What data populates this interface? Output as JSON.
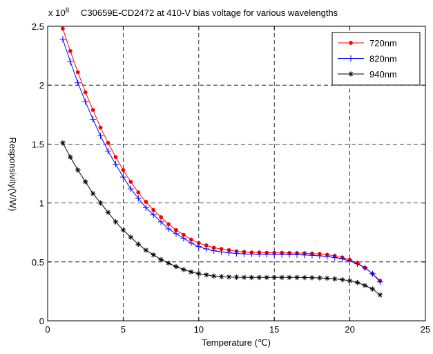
{
  "chart_data": {
    "type": "line",
    "title": "C30659E-CD2472 at 410-V bias voltage for various wavelengths",
    "multiplier_base": "x 10",
    "multiplier_exp": "8",
    "xlabel": "Temperature (℃)",
    "ylabel": "Responsivity(V/W)",
    "xlim": [
      0,
      25
    ],
    "ylim": [
      0,
      2.5
    ],
    "xticks": [
      0,
      5,
      10,
      15,
      20,
      25
    ],
    "yticks": [
      0,
      0.5,
      1,
      1.5,
      2,
      2.5
    ],
    "grid": true,
    "legend_position": "top-right",
    "x": [
      1,
      1.5,
      2,
      2.5,
      3,
      3.5,
      4,
      4.5,
      5,
      5.5,
      6,
      6.5,
      7,
      7.5,
      8,
      8.5,
      9,
      9.5,
      10,
      10.5,
      11,
      11.5,
      12,
      12.5,
      13,
      13.5,
      14,
      14.5,
      15,
      15.5,
      16,
      16.5,
      17,
      17.5,
      18,
      18.5,
      19,
      19.5,
      20,
      20.5,
      21,
      21.5,
      22
    ],
    "series": [
      {
        "name": "720nm",
        "color": "#ff0000",
        "marker": "dot",
        "values": [
          2.48,
          2.29,
          2.11,
          1.94,
          1.79,
          1.64,
          1.51,
          1.39,
          1.28,
          1.18,
          1.09,
          1.01,
          0.94,
          0.88,
          0.82,
          0.77,
          0.73,
          0.69,
          0.66,
          0.64,
          0.62,
          0.61,
          0.6,
          0.59,
          0.585,
          0.58,
          0.58,
          0.578,
          0.577,
          0.577,
          0.576,
          0.575,
          0.574,
          0.571,
          0.567,
          0.561,
          0.552,
          0.538,
          0.518,
          0.49,
          0.45,
          0.4,
          0.34
        ]
      },
      {
        "name": "820nm",
        "color": "#0000ff",
        "marker": "plus",
        "values": [
          2.39,
          2.2,
          2.02,
          1.86,
          1.71,
          1.57,
          1.44,
          1.33,
          1.22,
          1.12,
          1.04,
          0.96,
          0.9,
          0.84,
          0.78,
          0.74,
          0.7,
          0.66,
          0.63,
          0.61,
          0.595,
          0.585,
          0.577,
          0.572,
          0.568,
          0.566,
          0.565,
          0.564,
          0.563,
          0.563,
          0.562,
          0.561,
          0.559,
          0.556,
          0.552,
          0.546,
          0.537,
          0.525,
          0.508,
          0.484,
          0.45,
          0.4,
          0.33
        ]
      },
      {
        "name": "940nm",
        "color": "#000000",
        "marker": "star",
        "values": [
          1.51,
          1.39,
          1.28,
          1.18,
          1.08,
          1.0,
          0.92,
          0.84,
          0.77,
          0.71,
          0.65,
          0.6,
          0.56,
          0.52,
          0.49,
          0.46,
          0.435,
          0.415,
          0.4,
          0.39,
          0.38,
          0.375,
          0.372,
          0.37,
          0.369,
          0.368,
          0.368,
          0.368,
          0.368,
          0.368,
          0.368,
          0.368,
          0.367,
          0.366,
          0.364,
          0.361,
          0.356,
          0.349,
          0.34,
          0.325,
          0.3,
          0.27,
          0.22
        ]
      }
    ]
  }
}
